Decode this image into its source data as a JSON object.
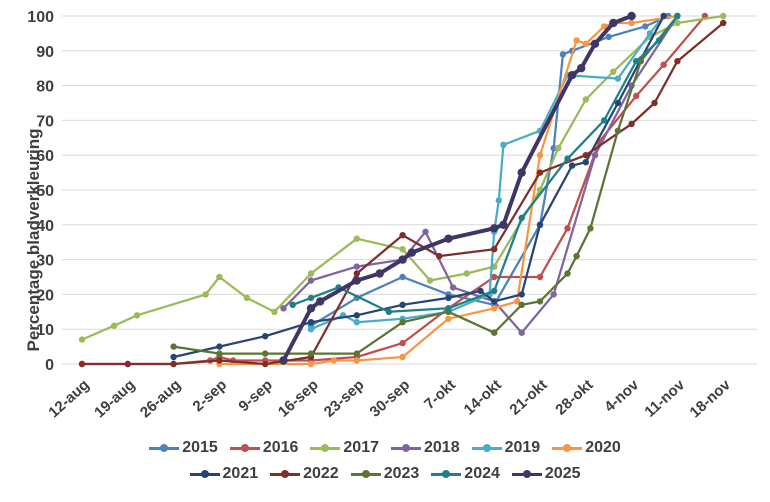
{
  "chart_data": {
    "type": "line",
    "title": "",
    "ylabel": "Percentage bladverkleuring",
    "xlabel": "",
    "ylim": [
      0,
      100
    ],
    "ytick_step": 10,
    "grid": "horizontal",
    "legend_position": "bottom",
    "legend_rows": [
      6,
      5
    ],
    "categories": [
      "12-aug",
      "19-aug",
      "26-aug",
      "2-sep",
      "9-sep",
      "16-sep",
      "23-sep",
      "30-sep",
      "7-okt",
      "14-okt",
      "21-okt",
      "28-okt",
      "4-nov",
      "11-nov",
      "18-nov"
    ],
    "x_note": "x = week index into categories (fractional = mid-week observation date)",
    "series": [
      {
        "name": "2015",
        "color": "#4E81BD",
        "width": 2.25,
        "points": [
          [
            5,
            11
          ],
          [
            6,
            19
          ],
          [
            7,
            25
          ],
          [
            8,
            20
          ],
          [
            9,
            17
          ],
          [
            10,
            40
          ],
          [
            10.3,
            62
          ],
          [
            10.5,
            89
          ],
          [
            10.7,
            90
          ],
          [
            11.5,
            94
          ],
          [
            12.3,
            97
          ],
          [
            12.8,
            100
          ]
        ]
      },
      {
        "name": "2016",
        "color": "#C0504D",
        "width": 2.25,
        "points": [
          [
            0,
            0
          ],
          [
            1,
            0
          ],
          [
            2,
            0
          ],
          [
            2.8,
            1
          ],
          [
            3,
            2
          ],
          [
            3.3,
            1
          ],
          [
            4,
            1
          ],
          [
            5,
            1
          ],
          [
            6,
            2
          ],
          [
            7,
            6
          ],
          [
            8,
            16
          ],
          [
            9,
            25
          ],
          [
            10,
            25
          ],
          [
            10.6,
            39
          ],
          [
            11.3,
            64
          ],
          [
            12.1,
            77
          ],
          [
            12.7,
            86
          ],
          [
            13.6,
            100
          ]
        ]
      },
      {
        "name": "2017",
        "color": "#9BBB59",
        "width": 2.25,
        "points": [
          [
            0,
            7
          ],
          [
            0.7,
            11
          ],
          [
            1.2,
            14
          ],
          [
            2.7,
            20
          ],
          [
            3,
            25
          ],
          [
            3.6,
            19
          ],
          [
            4.2,
            15
          ],
          [
            5,
            26
          ],
          [
            6,
            36
          ],
          [
            7,
            33
          ],
          [
            7.6,
            24
          ],
          [
            8.4,
            26
          ],
          [
            9,
            28
          ],
          [
            10,
            50
          ],
          [
            10.4,
            62
          ],
          [
            11,
            76
          ],
          [
            11.6,
            84
          ],
          [
            12.4,
            94
          ],
          [
            13,
            98
          ],
          [
            14,
            100
          ]
        ]
      },
      {
        "name": "2018",
        "color": "#8064A2",
        "width": 2.25,
        "points": [
          [
            4.4,
            16
          ],
          [
            5,
            24
          ],
          [
            6,
            28
          ],
          [
            7,
            30
          ],
          [
            7.5,
            38
          ],
          [
            8.1,
            22
          ],
          [
            9,
            18
          ],
          [
            9.6,
            9
          ],
          [
            10.3,
            20
          ],
          [
            11.2,
            60
          ],
          [
            12,
            80
          ],
          [
            13,
            100
          ]
        ]
      },
      {
        "name": "2019",
        "color": "#4BACC6",
        "width": 2.25,
        "points": [
          [
            5,
            10
          ],
          [
            5.7,
            14
          ],
          [
            6,
            12
          ],
          [
            7,
            13
          ],
          [
            8,
            15
          ],
          [
            8.9,
            20
          ],
          [
            9,
            38
          ],
          [
            9.1,
            47
          ],
          [
            9.2,
            63
          ],
          [
            10,
            67
          ],
          [
            10.6,
            83
          ],
          [
            11.7,
            82
          ],
          [
            12.4,
            95
          ],
          [
            12.7,
            100
          ]
        ]
      },
      {
        "name": "2020",
        "color": "#F79646",
        "width": 2.25,
        "points": [
          [
            3,
            0
          ],
          [
            4,
            0
          ],
          [
            5,
            0
          ],
          [
            5.5,
            1
          ],
          [
            6,
            1
          ],
          [
            7,
            2
          ],
          [
            8,
            13
          ],
          [
            9,
            16
          ],
          [
            9.5,
            18
          ],
          [
            10,
            60
          ],
          [
            10.8,
            93
          ],
          [
            11,
            92
          ],
          [
            11.4,
            97
          ],
          [
            11.6,
            98
          ],
          [
            12,
            98
          ],
          [
            13,
            100
          ]
        ]
      },
      {
        "name": "2021",
        "color": "#264478",
        "width": 2.25,
        "points": [
          [
            2,
            2
          ],
          [
            3,
            5
          ],
          [
            4,
            8
          ],
          [
            5,
            12
          ],
          [
            6,
            14
          ],
          [
            7,
            17
          ],
          [
            8,
            19
          ],
          [
            8.7,
            21
          ],
          [
            9,
            18
          ],
          [
            9.6,
            20
          ],
          [
            10,
            40
          ],
          [
            10.7,
            57
          ],
          [
            11,
            58
          ],
          [
            11.7,
            75
          ],
          [
            12.7,
            100
          ]
        ]
      },
      {
        "name": "2022",
        "color": "#7E2F2B",
        "width": 2.25,
        "points": [
          [
            0,
            0
          ],
          [
            1,
            0
          ],
          [
            2,
            0
          ],
          [
            3,
            1
          ],
          [
            4,
            0
          ],
          [
            5,
            2
          ],
          [
            6,
            26
          ],
          [
            7,
            37
          ],
          [
            7.8,
            31
          ],
          [
            9,
            33
          ],
          [
            10,
            55
          ],
          [
            11,
            60
          ],
          [
            12,
            69
          ],
          [
            12.5,
            75
          ],
          [
            13,
            87
          ],
          [
            14,
            98
          ]
        ]
      },
      {
        "name": "2023",
        "color": "#5B7535",
        "width": 2.25,
        "points": [
          [
            2,
            5
          ],
          [
            3,
            3
          ],
          [
            4,
            3
          ],
          [
            5,
            3
          ],
          [
            6,
            3
          ],
          [
            7,
            12
          ],
          [
            8,
            15
          ],
          [
            9,
            9
          ],
          [
            9.6,
            17
          ],
          [
            10,
            18
          ],
          [
            10.6,
            26
          ],
          [
            10.8,
            31
          ],
          [
            11.1,
            39
          ],
          [
            11.7,
            67
          ],
          [
            12.2,
            87
          ],
          [
            13,
            100
          ]
        ]
      },
      {
        "name": "2024",
        "color": "#1F8087",
        "width": 2.25,
        "points": [
          [
            4.6,
            17
          ],
          [
            5,
            19
          ],
          [
            5.6,
            22
          ],
          [
            6.7,
            15
          ],
          [
            8,
            16
          ],
          [
            9,
            21
          ],
          [
            9.6,
            42
          ],
          [
            10.6,
            59
          ],
          [
            11.4,
            70
          ],
          [
            12.1,
            87
          ],
          [
            12.6,
            93
          ],
          [
            13,
            100
          ]
        ]
      },
      {
        "name": "2025",
        "color": "#3F3566",
        "width": 4,
        "points": [
          [
            4.4,
            1
          ],
          [
            5,
            16
          ],
          [
            5.2,
            18
          ],
          [
            6,
            24
          ],
          [
            6.5,
            26
          ],
          [
            7,
            30
          ],
          [
            7.2,
            32
          ],
          [
            8,
            36
          ],
          [
            9,
            39
          ],
          [
            9.2,
            40
          ],
          [
            9.6,
            55
          ],
          [
            10.7,
            83
          ],
          [
            10.9,
            85
          ],
          [
            11.2,
            92
          ],
          [
            11.6,
            98
          ],
          [
            12,
            100
          ]
        ]
      }
    ]
  }
}
